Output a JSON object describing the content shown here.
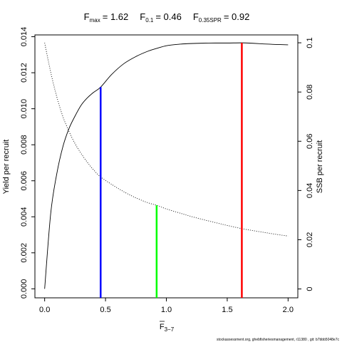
{
  "title": {
    "fmax": {
      "main": "F",
      "sub": "max",
      "value": "= 1.62"
    },
    "f01": {
      "main": "F",
      "sub": "0.1",
      "value": "= 0.46"
    },
    "f035": {
      "main": "F",
      "sub": "0.35SPR",
      "value": "= 0.92"
    }
  },
  "footer": "stockassessment.org, ghebfisheriesmanagement, r11380 , git: b7bbb5048e7c",
  "chart_data": {
    "type": "line",
    "xlabel": {
      "main": "F",
      "sub": "3−7"
    },
    "ylabel_left": "Yield per recruit",
    "ylabel_right": "SSB per recruit",
    "xlim": [
      -0.08,
      2.08
    ],
    "ylim_left": [
      -0.0005,
      0.0141
    ],
    "ylim_right": [
      -0.0036,
      0.1032
    ],
    "x_ticks": [
      0.0,
      0.5,
      1.0,
      1.5,
      2.0
    ],
    "x_tick_labels": [
      "0.0",
      "0.5",
      "1.0",
      "1.5",
      "2.0"
    ],
    "y_left_ticks": [
      0.0,
      0.002,
      0.004,
      0.006,
      0.008,
      0.01,
      0.012,
      0.014
    ],
    "y_left_tick_labels": [
      "0.000",
      "0.002",
      "0.004",
      "0.006",
      "0.008",
      "0.010",
      "0.012",
      "0.014"
    ],
    "y_right_ticks": [
      0.0,
      0.02,
      0.04,
      0.06,
      0.08,
      0.1
    ],
    "y_right_tick_labels": [
      "0",
      "0.02",
      "0.04",
      "0.06",
      "0.08",
      "0.1"
    ],
    "series": [
      {
        "axis": "left",
        "style": "solid",
        "color": "#000000",
        "x": [
          0.0,
          0.05,
          0.1,
          0.15,
          0.2,
          0.25,
          0.3,
          0.35,
          0.4,
          0.46,
          0.55,
          0.65,
          0.75,
          0.85,
          0.92,
          1.0,
          1.1,
          1.2,
          1.3,
          1.4,
          1.5,
          1.62,
          1.7,
          1.8,
          1.9,
          2.0
        ],
        "y": [
          0.0,
          0.0042,
          0.0064,
          0.0079,
          0.0089,
          0.0096,
          0.0102,
          0.0106,
          0.0109,
          0.0112,
          0.0119,
          0.0125,
          0.0129,
          0.0132,
          0.01335,
          0.0135,
          0.01358,
          0.01362,
          0.01364,
          0.01365,
          0.01365,
          0.01366,
          0.01364,
          0.0136,
          0.01357,
          0.01355
        ]
      },
      {
        "axis": "right",
        "style": "dotted",
        "color": "#000000",
        "x": [
          0.0,
          0.05,
          0.1,
          0.15,
          0.2,
          0.25,
          0.3,
          0.35,
          0.4,
          0.46,
          0.55,
          0.65,
          0.75,
          0.85,
          0.92,
          1.0,
          1.1,
          1.2,
          1.3,
          1.4,
          1.5,
          1.62,
          1.7,
          1.8,
          1.9,
          2.0
        ],
        "y": [
          0.1,
          0.088,
          0.078,
          0.07,
          0.064,
          0.059,
          0.055,
          0.0515,
          0.0485,
          0.0455,
          0.0425,
          0.0395,
          0.037,
          0.035,
          0.034,
          0.0325,
          0.031,
          0.0295,
          0.0282,
          0.027,
          0.0258,
          0.0245,
          0.0238,
          0.023,
          0.0222,
          0.0215
        ]
      }
    ],
    "reference_lines": [
      {
        "label": "F0.1",
        "x": 0.46,
        "y_top": 0.0112,
        "axis": "left",
        "color": "#0000ff"
      },
      {
        "label": "F0.35SPR",
        "x": 0.92,
        "y_top": 0.034,
        "axis": "right",
        "color": "#00ff00"
      },
      {
        "label": "Fmax",
        "x": 1.62,
        "y_top": 0.01366,
        "axis": "left",
        "color": "#ff0000"
      }
    ]
  }
}
